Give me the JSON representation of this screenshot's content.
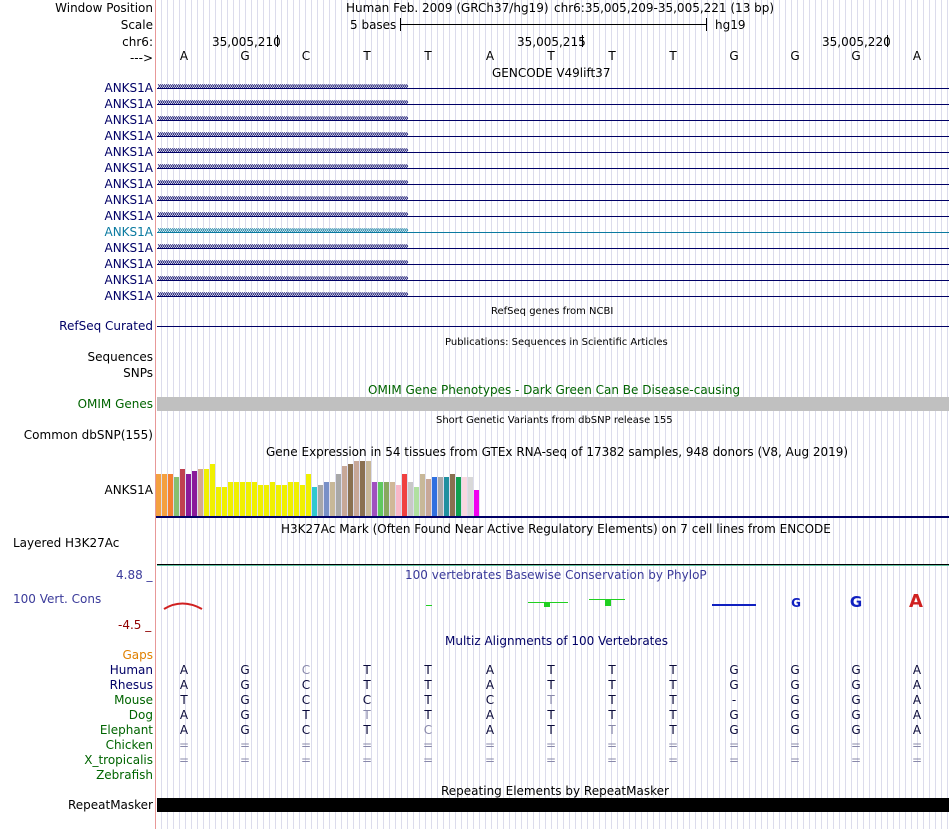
{
  "header": {
    "window_position_label": "Window Position",
    "scale_label": "Scale",
    "chr_label": "chr6:",
    "strand_label": "--->",
    "assembly": "Human Feb. 2009 (GRCh37/hg19)",
    "position": "chr6:35,005,209-35,005,221 (13 bp)",
    "scale_text": "5 bases",
    "scale_db": "hg19",
    "ruler_ticks": [
      "35,005,210",
      "35,005,215",
      "35,005,220"
    ]
  },
  "bases": [
    "A",
    "G",
    "C",
    "T",
    "T",
    "A",
    "T",
    "T",
    "T",
    "G",
    "G",
    "G",
    "A"
  ],
  "gencode": {
    "title": "GENCODE V49lift37",
    "genes": [
      "ANKS1A",
      "ANKS1A",
      "ANKS1A",
      "ANKS1A",
      "ANKS1A",
      "ANKS1A",
      "ANKS1A",
      "ANKS1A",
      "ANKS1A",
      "ANKS1A",
      "ANKS1A",
      "ANKS1A",
      "ANKS1A",
      "ANKS1A"
    ],
    "highlight_index": 9,
    "arrows": "›››››››››››››››››››››››››››››››››››››››››››››››››››››››››››››››››››››››››››››››››››››››››››››››››››››››››››››››››››››››››››››"
  },
  "refseq": {
    "label": "RefSeq Curated",
    "title": "RefSeq genes from NCBI"
  },
  "publications": {
    "label": "Sequences",
    "title": "Publications: Sequences in Scientific Articles"
  },
  "snps": {
    "label": "SNPs"
  },
  "omim": {
    "label": "OMIM Genes",
    "title": "OMIM Gene Phenotypes - Dark Green Can Be Disease-causing"
  },
  "dbsnp": {
    "label": "Common dbSNP(155)",
    "title": "Short Genetic Variants from dbSNP release 155"
  },
  "gtex": {
    "label": "ANKS1A",
    "title": "Gene Expression in 54 tissues from GTEx RNA-seq of 17382 samples, 948 donors (V8, Aug 2019)",
    "values": [
      16,
      16,
      16,
      15,
      18,
      16,
      17,
      18,
      18,
      20,
      11,
      11,
      13,
      13,
      13,
      13,
      13,
      12,
      12,
      13,
      12,
      12,
      13,
      13,
      12,
      16,
      11,
      12,
      13,
      13,
      16,
      19,
      20,
      21,
      21,
      21,
      13,
      13,
      13,
      13,
      12,
      16,
      13,
      11,
      16,
      14,
      15,
      15,
      15,
      16,
      15,
      15,
      15,
      10
    ],
    "colors": [
      "#f4a040",
      "#f4a040",
      "#f48030",
      "#86c070",
      "#c04050",
      "#8a1a9a",
      "#8a1a9a",
      "#d4a890",
      "#f0f000",
      "#f0f000",
      "#f0f000",
      "#f0f000",
      "#f0f000",
      "#f0f000",
      "#f0f000",
      "#f0f000",
      "#f0f000",
      "#f0f000",
      "#f0f000",
      "#f0f000",
      "#f0f000",
      "#f0f000",
      "#f0f000",
      "#f0f000",
      "#f0f000",
      "#f0f000",
      "#30c8d0",
      "#a8a8a8",
      "#7890c8",
      "#c8b898",
      "#a8a8a8",
      "#c8a898",
      "#8a7050",
      "#c8a898",
      "#8a7050",
      "#c8b898",
      "#a050c0",
      "#60c860",
      "#88a860",
      "#d0b898",
      "#f8b8c8",
      "#f04040",
      "#c8c8c8",
      "#b0e0a0",
      "#c8b898",
      "#c8a898",
      "#3070e0",
      "#a8a8a8",
      "#2090a0",
      "#8a7050",
      "#10a050",
      "#f8d8e0",
      "#d8d8d8",
      "#f000f0"
    ]
  },
  "h3k27ac": {
    "label": "Layered H3K27Ac",
    "title": "H3K27Ac Mark (Often Found Near Active Regulatory Elements) on 7 cell lines from ENCODE"
  },
  "phylop": {
    "label": "100 Vert. Cons",
    "max": "4.88 _",
    "min": "-4.5 _",
    "title": "100 vertebrates Basewise Conservation by PhyloP",
    "colors": {
      "neg": "#d02020",
      "pos_green": "#20d020",
      "pos_blue": "#1020c0"
    }
  },
  "multiz": {
    "title": "Multiz Alignments of 100 Vertebrates",
    "gaps_label": "Gaps",
    "species": [
      {
        "name": "Human",
        "group": "primate",
        "bases": [
          "A",
          "G",
          "C",
          "T",
          "T",
          "A",
          "T",
          "T",
          "T",
          "G",
          "G",
          "G",
          "A"
        ]
      },
      {
        "name": "Rhesus",
        "group": "primate",
        "bases": [
          "A",
          "G",
          "C",
          "T",
          "T",
          "A",
          "T",
          "T",
          "T",
          "G",
          "G",
          "G",
          "A"
        ]
      },
      {
        "name": "Mouse",
        "group": "mammal",
        "bases": [
          "T",
          "G",
          "C",
          "C",
          "T",
          "C",
          "T",
          "T",
          "T",
          "-",
          "G",
          "G",
          "A"
        ]
      },
      {
        "name": "Dog",
        "group": "mammal",
        "bases": [
          "A",
          "G",
          "T",
          "T",
          "T",
          "A",
          "T",
          "T",
          "T",
          "G",
          "G",
          "G",
          "A"
        ]
      },
      {
        "name": "Elephant",
        "group": "mammal",
        "bases": [
          "A",
          "G",
          "C",
          "T",
          "C",
          "A",
          "T",
          "T",
          "T",
          "G",
          "G",
          "G",
          "A"
        ]
      },
      {
        "name": "Chicken",
        "group": "vertebrate",
        "bases": [
          "=",
          "=",
          "=",
          "=",
          "=",
          "=",
          "=",
          "=",
          "=",
          "=",
          "=",
          "=",
          "="
        ]
      },
      {
        "name": "X_tropicalis",
        "group": "vertebrate",
        "bases": [
          "=",
          "=",
          "=",
          "=",
          "=",
          "=",
          "=",
          "=",
          "=",
          "=",
          "=",
          "=",
          "="
        ]
      },
      {
        "name": "Zebrafish",
        "group": "vertebrate",
        "bases": [
          "",
          "",
          "",
          "",
          "",
          "",
          "",
          "",
          "",
          "",
          "",
          "",
          ""
        ]
      }
    ],
    "light": [
      [],
      [],
      [
        0
      ],
      [
        3
      ],
      [
        4
      ],
      [
        5
      ],
      [
        2
      ],
      [
        4
      ],
      [],
      [],
      [],
      [],
      []
    ]
  },
  "repeatmasker": {
    "label": "RepeatMasker",
    "title": "Repeating Elements by RepeatMasker"
  },
  "colors": {
    "navy": "#000066",
    "gene_highlight": "#0a7aa0",
    "omim_green": "#006400",
    "gaps_orange": "#e08000",
    "phylop_blue": "#3a3a9a",
    "phylop_red": "#900000",
    "omim_bar": "#c0c0c0"
  }
}
